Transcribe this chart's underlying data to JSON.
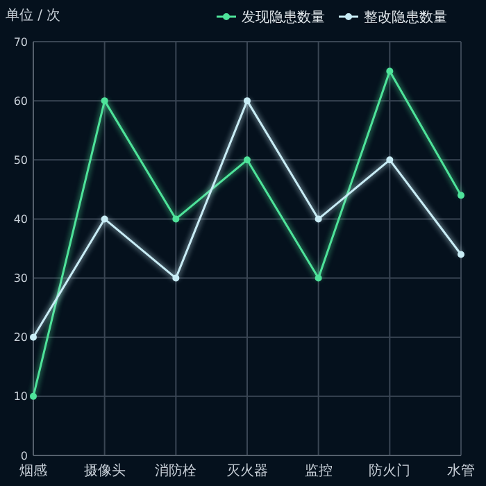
{
  "chart_data": {
    "type": "line",
    "ylabel": "单位 / 次",
    "categories": [
      "烟感",
      "摄像头",
      "消防栓",
      "灭火器",
      "监控",
      "防火门",
      "水管"
    ],
    "series": [
      {
        "name": "发现隐患数量",
        "color": "#4ee39a",
        "values": [
          10,
          60,
          40,
          50,
          30,
          65,
          44
        ]
      },
      {
        "name": "整改隐患数量",
        "color": "#c8ecf5",
        "values": [
          20,
          40,
          30,
          60,
          40,
          50,
          34
        ]
      }
    ],
    "ylim": [
      0,
      70
    ],
    "yticks": [
      0,
      10,
      20,
      30,
      40,
      50,
      60,
      70
    ],
    "grid": true,
    "legend": "top right",
    "marker": "circle",
    "line_style": "solid"
  }
}
